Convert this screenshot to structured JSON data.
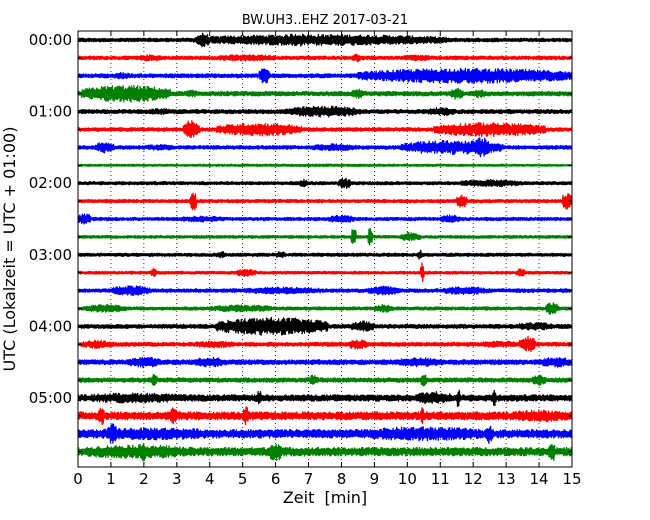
{
  "chart_data": {
    "type": "line",
    "title": "BW.UH3..EHZ 2017-03-21",
    "xlabel": "Zeit  [min]",
    "ylabel": "UTC (Lokalzeit = UTC + 01:00)",
    "xlim": [
      0,
      15
    ],
    "x_ticks": [
      0,
      1,
      2,
      3,
      4,
      5,
      6,
      7,
      8,
      9,
      10,
      11,
      12,
      13,
      14,
      15
    ],
    "x_tick_labels": [
      "0",
      "1",
      "2",
      "3",
      "4",
      "5",
      "6",
      "7",
      "8",
      "9",
      "10",
      "11",
      "12",
      "13",
      "14",
      "15"
    ],
    "y_tick_labels": [
      "00:00",
      "01:00",
      "02:00",
      "03:00",
      "04:00",
      "05:00"
    ],
    "rows_per_hour": 4,
    "row_minutes": 15,
    "grid": {
      "x": "dotted",
      "y": "off"
    },
    "color_cycle": [
      "#000000",
      "#ff0000",
      "#0000ff",
      "#008000"
    ],
    "series": [
      {
        "start": "00:00",
        "color": "#000000",
        "noise": 0.18,
        "events": [
          {
            "x0": 3.5,
            "x1": 11.2,
            "amp": 0.55
          },
          {
            "x0": 6.3,
            "x1": 7.0,
            "amp": 0.7
          },
          {
            "x0": 3.6,
            "x1": 4.0,
            "amp": 0.7
          }
        ]
      },
      {
        "start": "00:15",
        "color": "#ff0000",
        "noise": 0.18,
        "events": [
          {
            "x0": 1.8,
            "x1": 2.6,
            "amp": 0.32
          },
          {
            "x0": 4.0,
            "x1": 6.2,
            "amp": 0.32
          },
          {
            "x0": 8.3,
            "x1": 8.6,
            "amp": 0.4
          },
          {
            "x0": 9.8,
            "x1": 10.8,
            "amp": 0.3
          }
        ]
      },
      {
        "start": "00:30",
        "color": "#0000ff",
        "noise": 0.2,
        "events": [
          {
            "x0": 1.1,
            "x1": 1.6,
            "amp": 0.35
          },
          {
            "x0": 5.5,
            "x1": 5.8,
            "amp": 0.9
          },
          {
            "x0": 8.5,
            "x1": 15.0,
            "amp": 0.75
          }
        ]
      },
      {
        "start": "00:45",
        "color": "#008000",
        "noise": 0.22,
        "events": [
          {
            "x0": 0.1,
            "x1": 2.8,
            "amp": 0.85
          },
          {
            "x0": 3.2,
            "x1": 3.7,
            "amp": 0.35
          },
          {
            "x0": 8.3,
            "x1": 8.7,
            "amp": 0.5
          },
          {
            "x0": 11.3,
            "x1": 11.7,
            "amp": 0.55
          },
          {
            "x0": 12.0,
            "x1": 12.4,
            "amp": 0.4
          }
        ]
      },
      {
        "start": "01:00",
        "color": "#000000",
        "noise": 0.2,
        "events": [
          {
            "x0": 2.0,
            "x1": 3.1,
            "amp": 0.3
          },
          {
            "x0": 6.3,
            "x1": 8.6,
            "amp": 0.55
          },
          {
            "x0": 10.5,
            "x1": 11.5,
            "amp": 0.4
          }
        ]
      },
      {
        "start": "01:15",
        "color": "#ff0000",
        "noise": 0.18,
        "events": [
          {
            "x0": 3.2,
            "x1": 3.7,
            "amp": 0.95
          },
          {
            "x0": 4.2,
            "x1": 6.8,
            "amp": 0.65
          },
          {
            "x0": 10.8,
            "x1": 14.2,
            "amp": 0.7
          }
        ]
      },
      {
        "start": "01:30",
        "color": "#0000ff",
        "noise": 0.18,
        "events": [
          {
            "x0": 0.5,
            "x1": 1.1,
            "amp": 0.55
          },
          {
            "x0": 2.0,
            "x1": 3.0,
            "amp": 0.3
          },
          {
            "x0": 7.0,
            "x1": 8.5,
            "amp": 0.35
          },
          {
            "x0": 9.8,
            "x1": 12.9,
            "amp": 0.7
          },
          {
            "x0": 12.0,
            "x1": 12.5,
            "amp": 1.0
          }
        ]
      },
      {
        "start": "01:45",
        "color": "#008000",
        "noise": 0.1,
        "events": [
          {
            "x0": 0.0,
            "x1": 15.0,
            "amp": 0.12
          }
        ]
      },
      {
        "start": "02:00",
        "color": "#000000",
        "noise": 0.16,
        "events": [
          {
            "x0": 6.7,
            "x1": 7.0,
            "amp": 0.35
          },
          {
            "x0": 7.9,
            "x1": 8.3,
            "amp": 0.55
          },
          {
            "x0": 11.5,
            "x1": 13.5,
            "amp": 0.35
          }
        ]
      },
      {
        "start": "02:15",
        "color": "#ff0000",
        "noise": 0.16,
        "events": [
          {
            "x0": 3.4,
            "x1": 3.6,
            "amp": 1.0
          },
          {
            "x0": 11.5,
            "x1": 11.8,
            "amp": 0.7
          },
          {
            "x0": 14.7,
            "x1": 15.0,
            "amp": 0.9
          }
        ]
      },
      {
        "start": "02:30",
        "color": "#0000ff",
        "noise": 0.16,
        "events": [
          {
            "x0": 0.0,
            "x1": 0.4,
            "amp": 0.55
          },
          {
            "x0": 3.0,
            "x1": 4.5,
            "amp": 0.3
          },
          {
            "x0": 7.6,
            "x1": 8.4,
            "amp": 0.4
          },
          {
            "x0": 11.0,
            "x1": 11.6,
            "amp": 0.4
          }
        ]
      },
      {
        "start": "02:45",
        "color": "#008000",
        "noise": 0.14,
        "events": [
          {
            "x0": 8.3,
            "x1": 8.45,
            "amp": 1.0
          },
          {
            "x0": 8.8,
            "x1": 8.95,
            "amp": 0.9
          },
          {
            "x0": 9.8,
            "x1": 10.4,
            "amp": 0.45
          }
        ]
      },
      {
        "start": "03:00",
        "color": "#000000",
        "noise": 0.16,
        "events": [
          {
            "x0": 4.2,
            "x1": 4.5,
            "amp": 0.35
          },
          {
            "x0": 6.0,
            "x1": 6.3,
            "amp": 0.35
          },
          {
            "x0": 10.3,
            "x1": 10.45,
            "amp": 0.5
          }
        ]
      },
      {
        "start": "03:15",
        "color": "#ff0000",
        "noise": 0.14,
        "events": [
          {
            "x0": 2.2,
            "x1": 2.4,
            "amp": 0.45
          },
          {
            "x0": 4.8,
            "x1": 5.4,
            "amp": 0.4
          },
          {
            "x0": 10.4,
            "x1": 10.5,
            "amp": 1.0
          },
          {
            "x0": 13.3,
            "x1": 13.6,
            "amp": 0.4
          }
        ]
      },
      {
        "start": "03:30",
        "color": "#0000ff",
        "noise": 0.18,
        "events": [
          {
            "x0": 1.0,
            "x1": 2.2,
            "amp": 0.5
          },
          {
            "x0": 5.0,
            "x1": 7.5,
            "amp": 0.35
          },
          {
            "x0": 8.8,
            "x1": 9.8,
            "amp": 0.45
          },
          {
            "x0": 11.0,
            "x1": 12.5,
            "amp": 0.4
          }
        ]
      },
      {
        "start": "03:45",
        "color": "#008000",
        "noise": 0.16,
        "events": [
          {
            "x0": 0.2,
            "x1": 1.5,
            "amp": 0.4
          },
          {
            "x0": 4.0,
            "x1": 6.0,
            "amp": 0.35
          },
          {
            "x0": 9.0,
            "x1": 9.6,
            "amp": 0.4
          },
          {
            "x0": 14.2,
            "x1": 14.6,
            "amp": 0.6
          }
        ]
      },
      {
        "start": "04:00",
        "color": "#000000",
        "noise": 0.2,
        "events": [
          {
            "x0": 4.2,
            "x1": 7.6,
            "amp": 0.9
          },
          {
            "x0": 8.3,
            "x1": 9.0,
            "amp": 0.55
          },
          {
            "x0": 13.3,
            "x1": 14.5,
            "amp": 0.4
          }
        ]
      },
      {
        "start": "04:15",
        "color": "#ff0000",
        "noise": 0.2,
        "events": [
          {
            "x0": 0.1,
            "x1": 1.1,
            "amp": 0.4
          },
          {
            "x0": 3.5,
            "x1": 4.8,
            "amp": 0.35
          },
          {
            "x0": 8.2,
            "x1": 8.8,
            "amp": 0.5
          },
          {
            "x0": 12.2,
            "x1": 13.4,
            "amp": 0.35
          },
          {
            "x0": 13.4,
            "x1": 13.9,
            "amp": 0.8
          }
        ]
      },
      {
        "start": "04:30",
        "color": "#0000ff",
        "noise": 0.24,
        "events": [
          {
            "x0": 1.5,
            "x1": 2.5,
            "amp": 0.55
          },
          {
            "x0": 3.5,
            "x1": 4.5,
            "amp": 0.5
          },
          {
            "x0": 9.6,
            "x1": 11.2,
            "amp": 0.45
          },
          {
            "x0": 14.0,
            "x1": 15.0,
            "amp": 0.5
          }
        ]
      },
      {
        "start": "04:45",
        "color": "#008000",
        "noise": 0.22,
        "events": [
          {
            "x0": 2.2,
            "x1": 2.4,
            "amp": 0.6
          },
          {
            "x0": 7.0,
            "x1": 7.3,
            "amp": 0.5
          },
          {
            "x0": 10.4,
            "x1": 10.6,
            "amp": 0.6
          },
          {
            "x0": 13.8,
            "x1": 14.2,
            "amp": 0.55
          }
        ]
      },
      {
        "start": "05:00",
        "color": "#000000",
        "noise": 0.32,
        "events": [
          {
            "x0": 0.0,
            "x1": 3.5,
            "amp": 0.5
          },
          {
            "x0": 5.4,
            "x1": 5.6,
            "amp": 0.7
          },
          {
            "x0": 10.2,
            "x1": 11.4,
            "amp": 0.65
          },
          {
            "x0": 11.5,
            "x1": 11.6,
            "amp": 1.0
          },
          {
            "x0": 12.6,
            "x1": 12.7,
            "amp": 1.0
          }
        ]
      },
      {
        "start": "05:15",
        "color": "#ff0000",
        "noise": 0.4,
        "events": [
          {
            "x0": 0.6,
            "x1": 0.8,
            "amp": 1.0
          },
          {
            "x0": 2.8,
            "x1": 3.0,
            "amp": 0.9
          },
          {
            "x0": 5.0,
            "x1": 5.2,
            "amp": 0.9
          },
          {
            "x0": 10.4,
            "x1": 10.5,
            "amp": 1.0
          },
          {
            "x0": 13.0,
            "x1": 15.0,
            "amp": 0.6
          }
        ]
      },
      {
        "start": "05:30",
        "color": "#0000ff",
        "noise": 0.42,
        "events": [
          {
            "x0": 0.0,
            "x1": 4.5,
            "amp": 0.6
          },
          {
            "x0": 0.9,
            "x1": 1.2,
            "amp": 1.0
          },
          {
            "x0": 8.5,
            "x1": 12.5,
            "amp": 0.7
          },
          {
            "x0": 12.4,
            "x1": 12.6,
            "amp": 1.0
          }
        ]
      },
      {
        "start": "05:45",
        "color": "#008000",
        "noise": 0.42,
        "events": [
          {
            "x0": 0.0,
            "x1": 3.5,
            "amp": 0.7
          },
          {
            "x0": 1.9,
            "x1": 2.1,
            "amp": 1.0
          },
          {
            "x0": 5.8,
            "x1": 6.2,
            "amp": 1.0
          },
          {
            "x0": 14.3,
            "x1": 14.5,
            "amp": 1.0
          }
        ]
      }
    ]
  }
}
